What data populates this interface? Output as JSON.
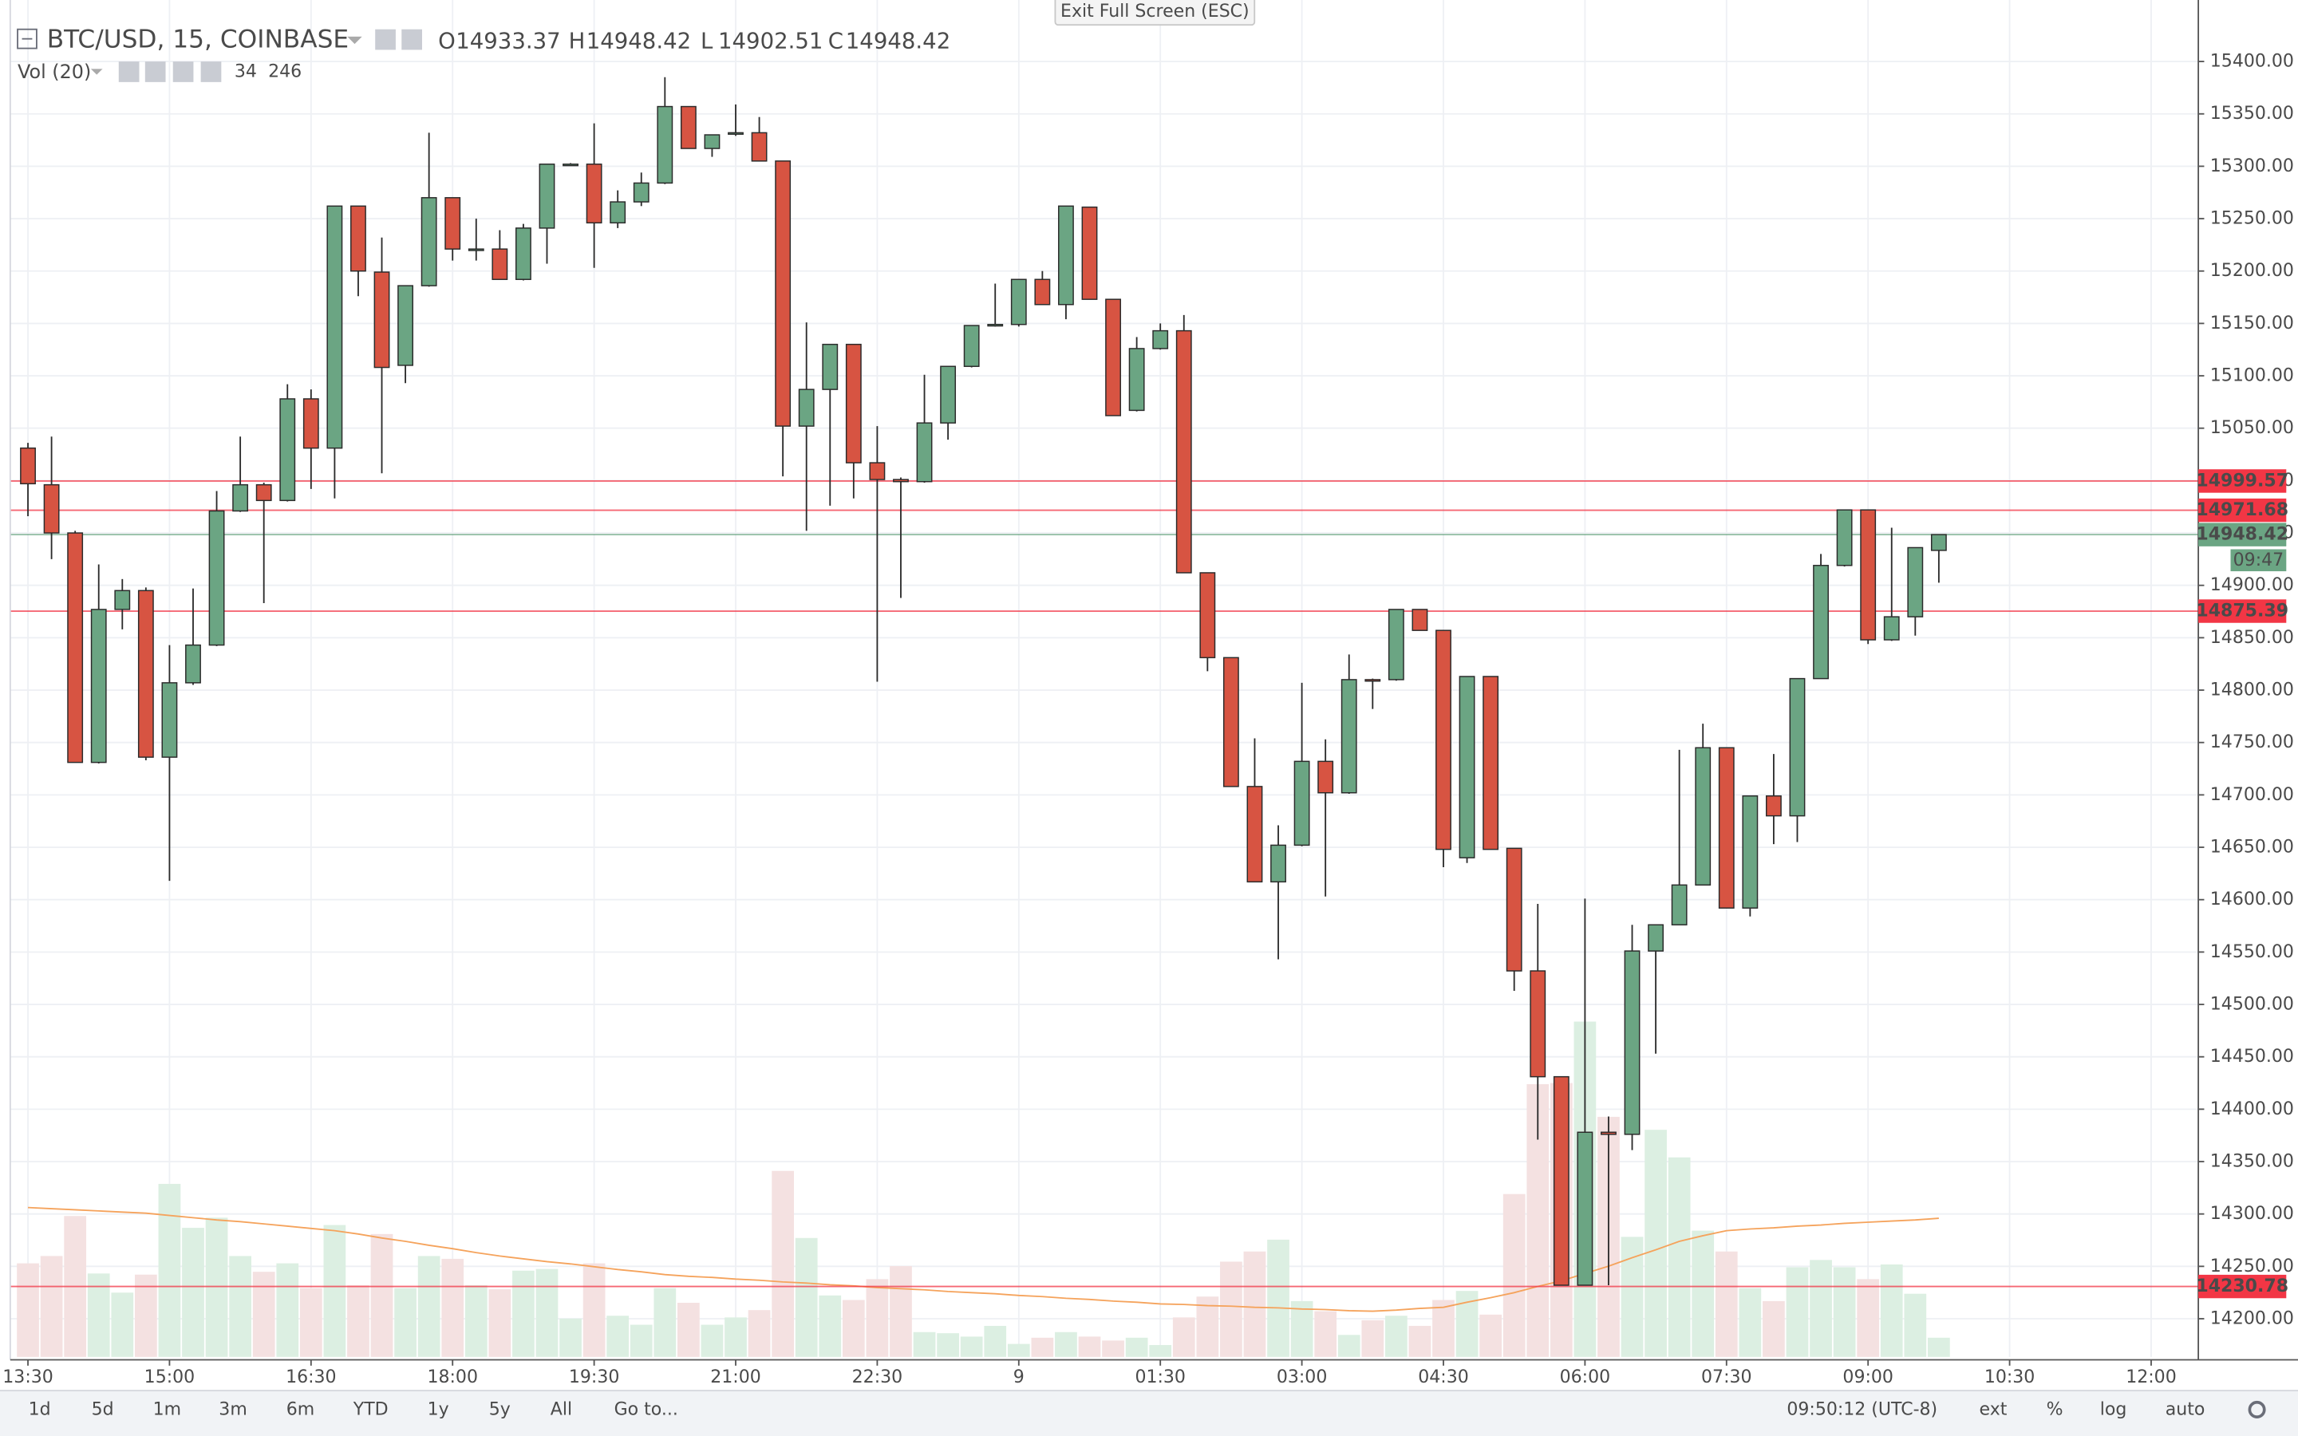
{
  "chart_data": {
    "type": "candlestick",
    "title": "BTC/USD, 15, COINBASE",
    "ohlc_letters": [
      "O",
      "H",
      "L",
      "C"
    ],
    "open": [
      15031,
      14996,
      14950,
      14731,
      14877,
      14895,
      14736,
      14807,
      14843,
      14971,
      14996,
      14981,
      15078,
      15031,
      15262,
      15199,
      15110,
      15186,
      15270,
      15220,
      15221,
      15192,
      15241,
      15302,
      15302,
      15246,
      15266,
      15284,
      15357,
      15317,
      15331,
      15332,
      15305,
      15052,
      15087,
      15130,
      15017,
      15001,
      14999,
      15055,
      15109,
      15148,
      15149,
      15192,
      15168,
      15261,
      15173,
      15067,
      15126,
      15143,
      14912,
      14831,
      14708,
      14617,
      14652,
      14732,
      14702,
      14810,
      14810,
      14877,
      14857,
      14640,
      14813,
      14649,
      14532,
      14431,
      14232,
      14378,
      14376,
      14551,
      14576,
      14614,
      14745,
      14592,
      14699,
      14680,
      14811,
      14919,
      14972,
      14848,
      14870,
      14933.37
    ],
    "high": [
      15036,
      15042,
      14952,
      14920,
      14906,
      14898,
      14843,
      14897,
      14990,
      15042,
      14998,
      15092,
      15087,
      15262,
      15262,
      15232,
      15186,
      15332,
      15270,
      15250,
      15239,
      15245,
      15302,
      15303,
      15341,
      15277,
      15294,
      15385,
      15357,
      15330,
      15359,
      15347,
      15305,
      15151,
      15130,
      15130,
      15052,
      15003,
      15101,
      15109,
      15148,
      15188,
      15192,
      15200,
      15262,
      15261,
      15173,
      15137,
      15150,
      15158,
      14912,
      14831,
      14754,
      14671,
      14807,
      14753,
      14834,
      14811,
      14877,
      14877,
      14857,
      14813,
      14813,
      14649,
      14596,
      14431,
      14601,
      14393,
      14576,
      14576,
      14743,
      14768,
      14745,
      14699,
      14739,
      14811,
      14930,
      14972,
      14972,
      14955,
      14936,
      14948.42
    ],
    "low": [
      14966,
      14925,
      14731,
      14730,
      14858,
      14733,
      14618,
      14805,
      14842,
      14970,
      14883,
      14980,
      14992,
      14983,
      15176,
      15007,
      15093,
      15185,
      15210,
      15210,
      15192,
      15191,
      15207,
      15301,
      15203,
      15241,
      15262,
      15283,
      15317,
      15309,
      15329,
      15305,
      15004,
      14952,
      14976,
      14983,
      14808,
      14888,
      14998,
      15039,
      15108,
      15147,
      15147,
      15168,
      15154,
      15173,
      15062,
      15066,
      15125,
      14912,
      14818,
      14708,
      14617,
      14543,
      14651,
      14603,
      14701,
      14782,
      14809,
      14857,
      14631,
      14635,
      14648,
      14513,
      14371,
      14232,
      14232,
      14232,
      14361,
      14453,
      14576,
      14614,
      14592,
      14584,
      14653,
      14655,
      14811,
      14918,
      14844,
      14847,
      14852,
      14902.51
    ],
    "close": [
      14997,
      14950,
      14731,
      14877,
      14895,
      14736,
      14807,
      14843,
      14971,
      14996,
      14981,
      15078,
      15031,
      15262,
      15200,
      15108,
      15186,
      15270,
      15221,
      15221,
      15192,
      15241,
      15302,
      15302,
      15246,
      15266,
      15284,
      15357,
      15317,
      15330,
      15332,
      15305,
      15052,
      15087,
      15130,
      15017,
      15001,
      14999,
      15055,
      15109,
      15148,
      15149,
      15192,
      15168,
      15262,
      15173,
      15062,
      15126,
      15143,
      14912,
      14831,
      14708,
      14617,
      14652,
      14732,
      14702,
      14810,
      14809,
      14877,
      14857,
      14648,
      14813,
      14648,
      14532,
      14431,
      14232,
      14378,
      14376,
      14551,
      14576,
      14614,
      14745,
      14592,
      14699,
      14680,
      14811,
      14919,
      14972,
      14848,
      14870,
      14936,
      14948.42
    ],
    "up_color": "#6ba583",
    "down_color": "#d75442",
    "xlim": [
      -0.75,
      92
    ],
    "xticks": [
      {
        "value": 0,
        "label": "13:30"
      },
      {
        "value": 6,
        "label": "15:00"
      },
      {
        "value": 12,
        "label": "16:30"
      },
      {
        "value": 18,
        "label": "18:00"
      },
      {
        "value": 24,
        "label": "19:30"
      },
      {
        "value": 30,
        "label": "21:00"
      },
      {
        "value": 36,
        "label": "22:30"
      },
      {
        "value": 42,
        "label": "9"
      },
      {
        "value": 48,
        "label": "01:30"
      },
      {
        "value": 54,
        "label": "03:00"
      },
      {
        "value": 60,
        "label": "04:30"
      },
      {
        "value": 66,
        "label": "06:00"
      },
      {
        "value": 72,
        "label": "07:30"
      },
      {
        "value": 78,
        "label": "09:00"
      },
      {
        "value": 84,
        "label": "10:30"
      },
      {
        "value": 90,
        "label": "12:00"
      }
    ],
    "ylim": [
      14163.6,
      15451.7
    ],
    "yticks": [
      {
        "value": 14200,
        "label": "14200.00"
      },
      {
        "value": 14250,
        "label": "14250.00"
      },
      {
        "value": 14300,
        "label": "14300.00"
      },
      {
        "value": 14350,
        "label": "14350.00"
      },
      {
        "value": 14400,
        "label": "14400.00"
      },
      {
        "value": 14450,
        "label": "14450.00"
      },
      {
        "value": 14500,
        "label": "14500.00"
      },
      {
        "value": 14550,
        "label": "14550.00"
      },
      {
        "value": 14600,
        "label": "14600.00"
      },
      {
        "value": 14650,
        "label": "14650.00"
      },
      {
        "value": 14700,
        "label": "14700.00"
      },
      {
        "value": 14750,
        "label": "14750.00"
      },
      {
        "value": 14800,
        "label": "14800.00"
      },
      {
        "value": 14850,
        "label": "14850.00"
      },
      {
        "value": 14900,
        "label": "14900.00"
      },
      {
        "value": 14950,
        "label": "14950.00"
      },
      {
        "value": 15000,
        "label": "15000.00"
      },
      {
        "value": 15050,
        "label": "15050.00"
      },
      {
        "value": 15100,
        "label": "15100.00"
      },
      {
        "value": 15150,
        "label": "15150.00"
      },
      {
        "value": 15200,
        "label": "15200.00"
      },
      {
        "value": 15250,
        "label": "15250.00"
      },
      {
        "value": 15300,
        "label": "15300.00"
      },
      {
        "value": 15350,
        "label": "15350.00"
      },
      {
        "value": 15400,
        "label": "15400.00"
      }
    ],
    "grid": true,
    "hlines": [
      {
        "value": 14999.57,
        "color": "#f23645"
      },
      {
        "value": 14971.68,
        "color": "#f23645"
      },
      {
        "value": 14875.39,
        "color": "#f23645"
      },
      {
        "value": 14230.78,
        "color": "#f23645"
      }
    ],
    "countdown": "09:47",
    "volume": {
      "label": "Vol (20)",
      "values": [
        166,
        179,
        250,
        148,
        114,
        146,
        307,
        229,
        247,
        179,
        151,
        166,
        122,
        234,
        127,
        218,
        122,
        179,
        174,
        127,
        120,
        153,
        156,
        68,
        166,
        73,
        57,
        122,
        96,
        57,
        70,
        83,
        330,
        211,
        109,
        101,
        138,
        161,
        44,
        42,
        36,
        55,
        23,
        34,
        44,
        36,
        29,
        34,
        21,
        70,
        107,
        169,
        187,
        208,
        99,
        81,
        39,
        65,
        73,
        55,
        101,
        117,
        75,
        289,
        484,
        486,
        595,
        426,
        213,
        403,
        354,
        224,
        187,
        122,
        99,
        159,
        172,
        159,
        138,
        164,
        112,
        34
      ],
      "ma": [
        265,
        263,
        261,
        259,
        257,
        255,
        251,
        247,
        243,
        240,
        236,
        232,
        228,
        224,
        218,
        211,
        205,
        198,
        192,
        185,
        179,
        174,
        169,
        165,
        160,
        155,
        151,
        146,
        143,
        141,
        138,
        136,
        133,
        131,
        128,
        126,
        123,
        121,
        119,
        116,
        114,
        112,
        109,
        107,
        104,
        102,
        99,
        97,
        94,
        93,
        91,
        90,
        88,
        87,
        85,
        84,
        82,
        81,
        83,
        86,
        88,
        97,
        105,
        114,
        125,
        135,
        148,
        161,
        176,
        190,
        205,
        215,
        224,
        227,
        229,
        232,
        234,
        237,
        239,
        241,
        243,
        246
      ],
      "vlim": [
        0,
        2395
      ],
      "up_color": "#dcefe2",
      "down_color": "#f4e1e1",
      "ma_color": "#f5a35c"
    }
  },
  "toolbar": {
    "fullscreen_hint": "Exit Full Screen (ESC)",
    "range_buttons": [
      "1d",
      "5d",
      "1m",
      "3m",
      "6m",
      "YTD",
      "1y",
      "5y",
      "All"
    ],
    "goto": "Go to...",
    "clock": "09:50:12 (UTC-8)",
    "options": [
      "ext",
      "%",
      "log",
      "auto"
    ]
  }
}
